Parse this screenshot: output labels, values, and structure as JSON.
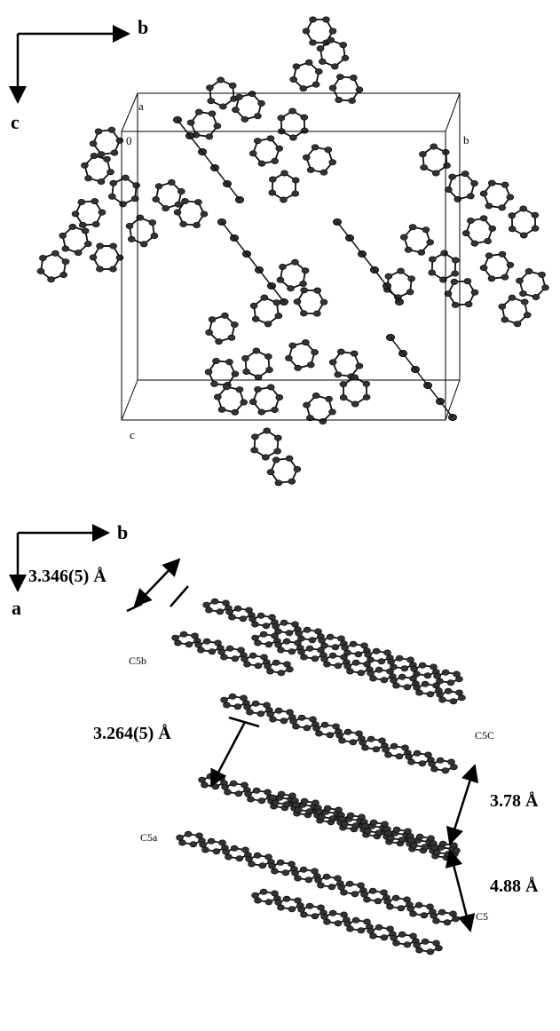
{
  "top_panel": {
    "axes": {
      "horizontal": "b",
      "vertical": "c"
    },
    "cell_labels": {
      "a": "a",
      "origin": "0",
      "b": "b",
      "c": "c"
    }
  },
  "bottom_panel": {
    "axes": {
      "horizontal": "b",
      "vertical": "a"
    },
    "distances": [
      "3.346(5) Å",
      "3.264(5) Å",
      "3.78 Å",
      "4.88 Å"
    ],
    "atom_labels": [
      "C5b",
      "C5C",
      "C5a",
      "C5"
    ]
  }
}
